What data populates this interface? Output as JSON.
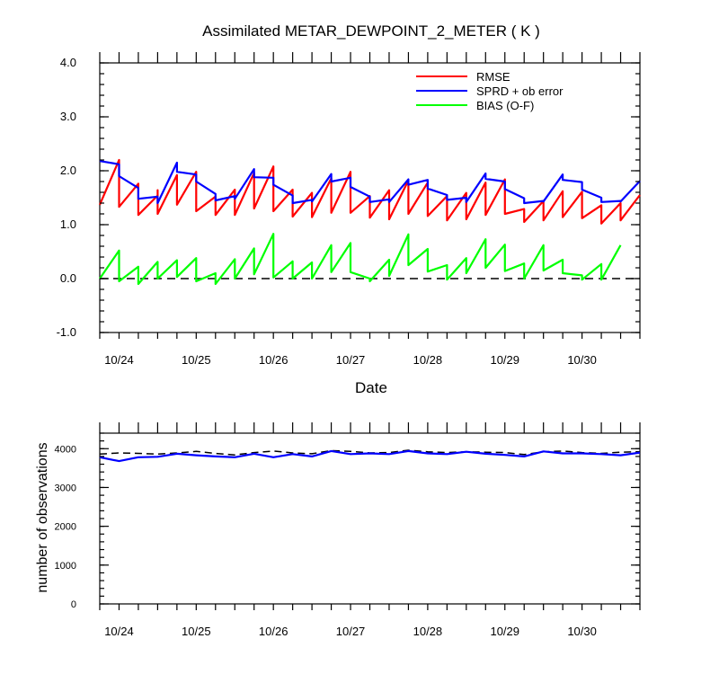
{
  "chart_data": [
    {
      "type": "line",
      "title": "Assimilated METAR_DEWPOINT_2_METER ( K )",
      "xlabel": "Date",
      "ylabel": "",
      "xlim": [
        0,
        7.0
      ],
      "ylim": [
        -1.0,
        4.0
      ],
      "yticks": [
        -1.0,
        0.0,
        1.0,
        2.0,
        3.0,
        4.0
      ],
      "ytick_labels": [
        "-1.0",
        "0.0",
        "1.0",
        "2.0",
        "3.0",
        "4.0"
      ],
      "xtick_positions": [
        0.25,
        1.25,
        2.25,
        3.25,
        4.25,
        5.25,
        6.25
      ],
      "xtick_labels": [
        "10/24",
        "10/25",
        "10/26",
        "10/27",
        "10/28",
        "10/29",
        "10/30"
      ],
      "zero_line": true,
      "legend_position": "top-right",
      "series": [
        {
          "name": "RMSE",
          "color": "#ff0000",
          "pairs": [
            [
              0.0,
              1.37
            ],
            [
              0.25,
              2.2
            ],
            [
              0.25,
              1.33
            ],
            [
              0.5,
              1.76
            ],
            [
              0.5,
              1.18
            ],
            [
              0.75,
              1.54
            ],
            [
              0.75,
              1.23
            ],
            [
              0.75,
              1.64
            ],
            [
              0.75,
              1.2
            ],
            [
              1.0,
              1.92
            ],
            [
              1.0,
              1.37
            ],
            [
              1.25,
              1.98
            ],
            [
              1.25,
              1.25
            ],
            [
              1.5,
              1.52
            ],
            [
              1.5,
              1.18
            ],
            [
              1.75,
              1.65
            ],
            [
              1.75,
              1.18
            ],
            [
              2.0,
              1.96
            ],
            [
              2.0,
              1.3
            ],
            [
              2.25,
              2.08
            ],
            [
              2.25,
              1.25
            ],
            [
              2.5,
              1.65
            ],
            [
              2.5,
              1.15
            ],
            [
              2.75,
              1.59
            ],
            [
              2.75,
              1.14
            ],
            [
              3.0,
              1.86
            ],
            [
              3.0,
              1.22
            ],
            [
              3.25,
              1.98
            ],
            [
              3.25,
              1.22
            ],
            [
              3.5,
              1.53
            ],
            [
              3.5,
              1.13
            ],
            [
              3.75,
              1.64
            ],
            [
              3.75,
              1.1
            ],
            [
              4.0,
              1.82
            ],
            [
              4.0,
              1.2
            ],
            [
              4.25,
              1.78
            ],
            [
              4.25,
              1.16
            ],
            [
              4.5,
              1.53
            ],
            [
              4.5,
              1.08
            ],
            [
              4.75,
              1.59
            ],
            [
              4.75,
              1.1
            ],
            [
              5.0,
              1.78
            ],
            [
              5.0,
              1.18
            ],
            [
              5.25,
              1.84
            ],
            [
              5.25,
              1.2
            ],
            [
              5.5,
              1.29
            ],
            [
              5.5,
              1.05
            ],
            [
              5.75,
              1.44
            ],
            [
              5.75,
              1.08
            ],
            [
              6.0,
              1.62
            ],
            [
              6.0,
              1.14
            ],
            [
              6.25,
              1.61
            ],
            [
              6.25,
              1.12
            ],
            [
              6.5,
              1.36
            ],
            [
              6.5,
              1.02
            ],
            [
              6.75,
              1.4
            ],
            [
              6.75,
              1.08
            ],
            [
              7.0,
              1.55
            ]
          ]
        },
        {
          "name": "SPRD + ob error",
          "color": "#0000ff",
          "pairs": [
            [
              0.0,
              2.18
            ],
            [
              0.25,
              2.12
            ],
            [
              0.25,
              1.9
            ],
            [
              0.5,
              1.68
            ],
            [
              0.5,
              1.48
            ],
            [
              0.75,
              1.52
            ],
            [
              0.75,
              1.4
            ],
            [
              1.0,
              2.15
            ],
            [
              1.0,
              1.98
            ],
            [
              1.25,
              1.93
            ],
            [
              1.25,
              1.8
            ],
            [
              1.5,
              1.57
            ],
            [
              1.5,
              1.45
            ],
            [
              1.75,
              1.53
            ],
            [
              1.75,
              1.48
            ],
            [
              2.0,
              2.03
            ],
            [
              2.0,
              1.88
            ],
            [
              2.25,
              1.87
            ],
            [
              2.25,
              1.74
            ],
            [
              2.5,
              1.54
            ],
            [
              2.5,
              1.4
            ],
            [
              2.75,
              1.46
            ],
            [
              2.75,
              1.43
            ],
            [
              3.0,
              1.94
            ],
            [
              3.0,
              1.8
            ],
            [
              3.25,
              1.87
            ],
            [
              3.25,
              1.7
            ],
            [
              3.5,
              1.52
            ],
            [
              3.5,
              1.42
            ],
            [
              3.75,
              1.47
            ],
            [
              3.75,
              1.42
            ],
            [
              4.0,
              1.84
            ],
            [
              4.0,
              1.74
            ],
            [
              4.25,
              1.83
            ],
            [
              4.25,
              1.67
            ],
            [
              4.5,
              1.55
            ],
            [
              4.5,
              1.46
            ],
            [
              4.75,
              1.5
            ],
            [
              4.75,
              1.42
            ],
            [
              5.0,
              1.95
            ],
            [
              5.0,
              1.85
            ],
            [
              5.25,
              1.8
            ],
            [
              5.25,
              1.66
            ],
            [
              5.5,
              1.49
            ],
            [
              5.5,
              1.4
            ],
            [
              5.75,
              1.44
            ],
            [
              5.75,
              1.43
            ],
            [
              6.0,
              1.93
            ],
            [
              6.0,
              1.83
            ],
            [
              6.25,
              1.79
            ],
            [
              6.25,
              1.65
            ],
            [
              6.5,
              1.5
            ],
            [
              6.5,
              1.42
            ],
            [
              6.75,
              1.44
            ],
            [
              6.75,
              1.43
            ],
            [
              7.0,
              1.81
            ]
          ]
        },
        {
          "name": "BIAS (O-F)",
          "color": "#00ff00",
          "pairs": [
            [
              0.0,
              0.0
            ],
            [
              0.25,
              0.52
            ],
            [
              0.25,
              -0.05
            ],
            [
              0.5,
              0.22
            ],
            [
              0.5,
              -0.1
            ],
            [
              0.75,
              0.31
            ],
            [
              0.75,
              0.0
            ],
            [
              1.0,
              0.34
            ],
            [
              1.0,
              0.03
            ],
            [
              1.25,
              0.38
            ],
            [
              1.25,
              -0.05
            ],
            [
              1.5,
              0.1
            ],
            [
              1.5,
              -0.1
            ],
            [
              1.75,
              0.36
            ],
            [
              1.75,
              0.0
            ],
            [
              2.0,
              0.56
            ],
            [
              2.0,
              0.08
            ],
            [
              2.25,
              0.83
            ],
            [
              2.25,
              0.02
            ],
            [
              2.5,
              0.32
            ],
            [
              2.5,
              0.0
            ],
            [
              2.75,
              0.3
            ],
            [
              2.75,
              0.0
            ],
            [
              3.0,
              0.62
            ],
            [
              3.0,
              0.12
            ],
            [
              3.25,
              0.66
            ],
            [
              3.25,
              0.12
            ],
            [
              3.5,
              0.0
            ],
            [
              3.5,
              -0.05
            ],
            [
              3.75,
              0.35
            ],
            [
              3.75,
              0.05
            ],
            [
              4.0,
              0.82
            ],
            [
              4.0,
              0.25
            ],
            [
              4.25,
              0.55
            ],
            [
              4.25,
              0.13
            ],
            [
              4.5,
              0.25
            ],
            [
              4.5,
              -0.02
            ],
            [
              4.75,
              0.38
            ],
            [
              4.75,
              0.1
            ],
            [
              5.0,
              0.73
            ],
            [
              5.0,
              0.2
            ],
            [
              5.25,
              0.63
            ],
            [
              5.25,
              0.14
            ],
            [
              5.5,
              0.28
            ],
            [
              5.5,
              0.0
            ],
            [
              5.75,
              0.62
            ],
            [
              5.75,
              0.15
            ],
            [
              6.0,
              0.35
            ],
            [
              6.0,
              0.1
            ],
            [
              6.25,
              0.06
            ],
            [
              6.25,
              -0.02
            ],
            [
              6.5,
              0.27
            ],
            [
              6.5,
              -0.02
            ],
            [
              6.75,
              0.62
            ]
          ]
        }
      ]
    },
    {
      "type": "line",
      "title": "",
      "xlabel": "",
      "ylabel": "number of observations",
      "xlim": [
        0,
        7.0
      ],
      "ylim": [
        0,
        4400
      ],
      "yticks": [
        0,
        1000,
        2000,
        3000,
        4000
      ],
      "ytick_labels": [
        "0",
        "1000",
        "2000",
        "3000",
        "4000"
      ],
      "xtick_positions": [
        0.25,
        1.25,
        2.25,
        3.25,
        4.25,
        5.25,
        6.25
      ],
      "xtick_labels": [
        "10/24",
        "10/25",
        "10/26",
        "10/27",
        "10/28",
        "10/29",
        "10/30"
      ],
      "series": [
        {
          "name": "",
          "color": "#000000",
          "dashed": true,
          "x": [
            0.0,
            0.25,
            0.5,
            0.75,
            1.0,
            1.25,
            1.5,
            1.75,
            2.0,
            2.25,
            2.5,
            2.75,
            3.0,
            3.25,
            3.5,
            3.75,
            4.0,
            4.25,
            4.5,
            4.75,
            5.0,
            5.25,
            5.5,
            5.75,
            6.0,
            6.25,
            6.5,
            6.75,
            7.0
          ],
          "values": [
            3860,
            3890,
            3880,
            3860,
            3890,
            3930,
            3880,
            3840,
            3900,
            3940,
            3890,
            3870,
            3950,
            3930,
            3890,
            3900,
            3960,
            3920,
            3900,
            3920,
            3910,
            3900,
            3850,
            3920,
            3940,
            3900,
            3880,
            3910,
            3920
          ]
        },
        {
          "name": "",
          "color": "#0000ff",
          "dashed": false,
          "x": [
            0.0,
            0.25,
            0.5,
            0.75,
            1.0,
            1.25,
            1.5,
            1.75,
            2.0,
            2.25,
            2.5,
            2.75,
            3.0,
            3.25,
            3.5,
            3.75,
            4.0,
            4.25,
            4.5,
            4.75,
            5.0,
            5.25,
            5.5,
            5.75,
            6.0,
            6.25,
            6.5,
            6.75,
            7.0
          ],
          "values": [
            3780,
            3680,
            3780,
            3790,
            3870,
            3830,
            3800,
            3780,
            3870,
            3780,
            3860,
            3800,
            3940,
            3860,
            3880,
            3860,
            3940,
            3880,
            3860,
            3920,
            3870,
            3840,
            3800,
            3930,
            3880,
            3880,
            3860,
            3830,
            3900
          ]
        }
      ]
    }
  ]
}
